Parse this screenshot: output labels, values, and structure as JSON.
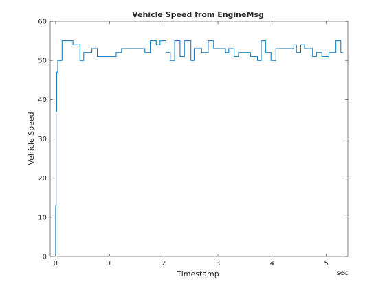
{
  "chart_data": {
    "type": "line",
    "title": "Vehicle Speed from EngineMsg",
    "xlabel": "Timestamp",
    "ylabel": "Vehicle Speed",
    "x_unit": "sec",
    "xlim": [
      -0.1,
      5.4
    ],
    "ylim": [
      0,
      60
    ],
    "xticks": [
      0,
      1,
      2,
      3,
      4,
      5
    ],
    "yticks": [
      0,
      10,
      20,
      30,
      40,
      50,
      60
    ],
    "grid": false,
    "line_color": "#0072bd",
    "series": [
      {
        "step": "post",
        "x": [
          0.0,
          0.01,
          0.02,
          0.04,
          0.12,
          0.15,
          0.32,
          0.45,
          0.52,
          0.58,
          0.67,
          0.77,
          0.82,
          1.08,
          1.12,
          1.22,
          1.65,
          1.75,
          1.86,
          1.93,
          2.04,
          2.12,
          2.2,
          2.3,
          2.38,
          2.5,
          2.56,
          2.6,
          2.7,
          2.77,
          2.82,
          2.92,
          2.98,
          3.14,
          3.2,
          3.3,
          3.38,
          3.6,
          3.67,
          3.73,
          3.8,
          3.88,
          3.98,
          4.07,
          4.4,
          4.45,
          4.53,
          4.6,
          4.75,
          4.82,
          4.92,
          5.05,
          5.18,
          5.27
        ],
        "values": [
          13,
          37,
          47,
          50,
          55,
          55,
          54,
          50,
          52,
          52,
          53,
          51,
          51,
          51,
          52,
          53,
          52,
          55,
          54,
          55,
          52,
          50,
          55,
          51,
          55,
          50,
          53,
          53,
          52,
          52,
          55,
          53,
          53,
          52,
          53,
          51,
          52,
          51,
          51,
          50,
          55,
          52,
          50,
          53,
          54,
          52,
          54,
          53,
          51,
          52,
          51,
          52,
          55,
          52
        ]
      }
    ]
  }
}
